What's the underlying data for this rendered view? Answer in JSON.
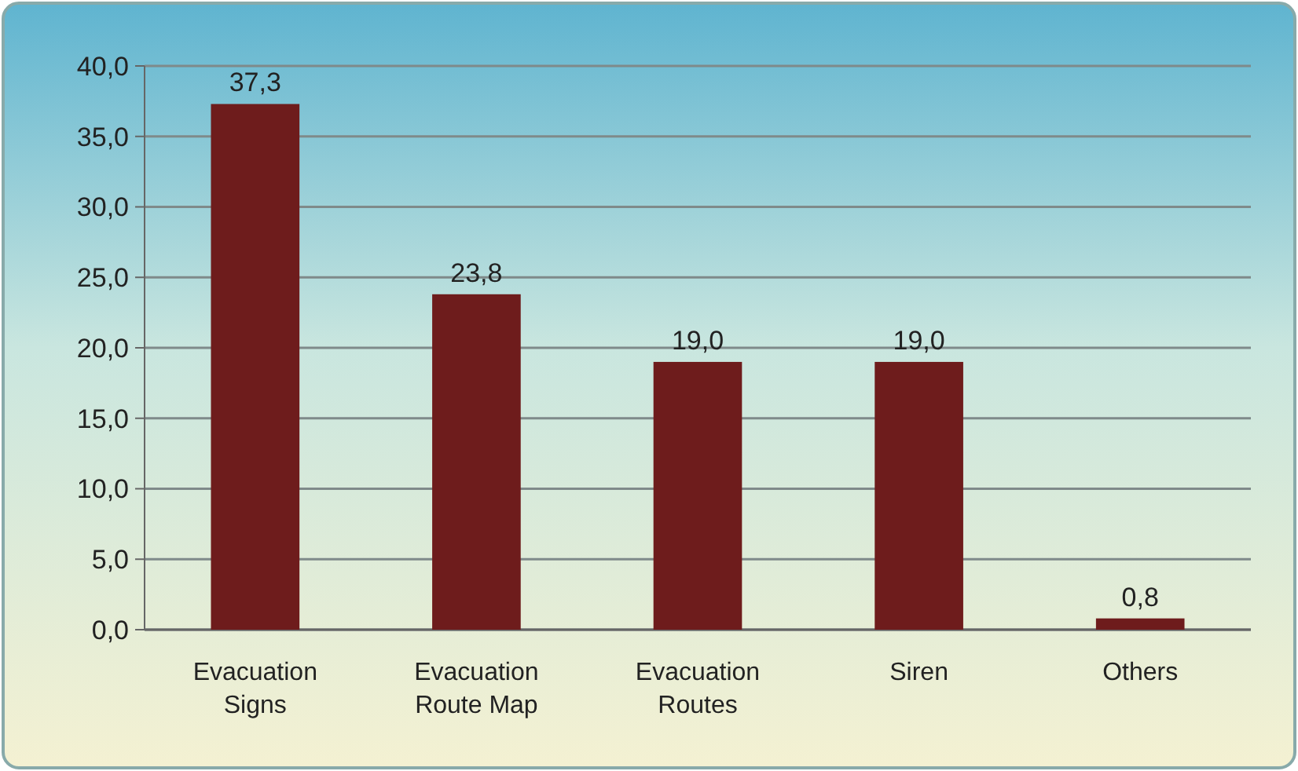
{
  "chart_data": {
    "type": "bar",
    "categories": [
      "Evacuation Signs",
      "Evacuation Route Map",
      "Evacuation Routes",
      "Siren",
      "Others"
    ],
    "values": [
      37.3,
      23.8,
      19.0,
      19.0,
      0.8
    ],
    "value_labels": [
      "37,3",
      "23,8",
      "19,0",
      "19,0",
      "0,8"
    ],
    "color": "#6e1c1c",
    "ylim": [
      0,
      40
    ],
    "yticks": [
      {
        "value": 0,
        "label": "0,0"
      },
      {
        "value": 5,
        "label": "5,0"
      },
      {
        "value": 10,
        "label": "10,0"
      },
      {
        "value": 15,
        "label": "15,0"
      },
      {
        "value": 20,
        "label": "20,0"
      },
      {
        "value": 25,
        "label": "25,0"
      },
      {
        "value": 30,
        "label": "30,0"
      },
      {
        "value": 35,
        "label": "35,0"
      },
      {
        "value": 40,
        "label": "40,0"
      }
    ],
    "grid": "y"
  }
}
